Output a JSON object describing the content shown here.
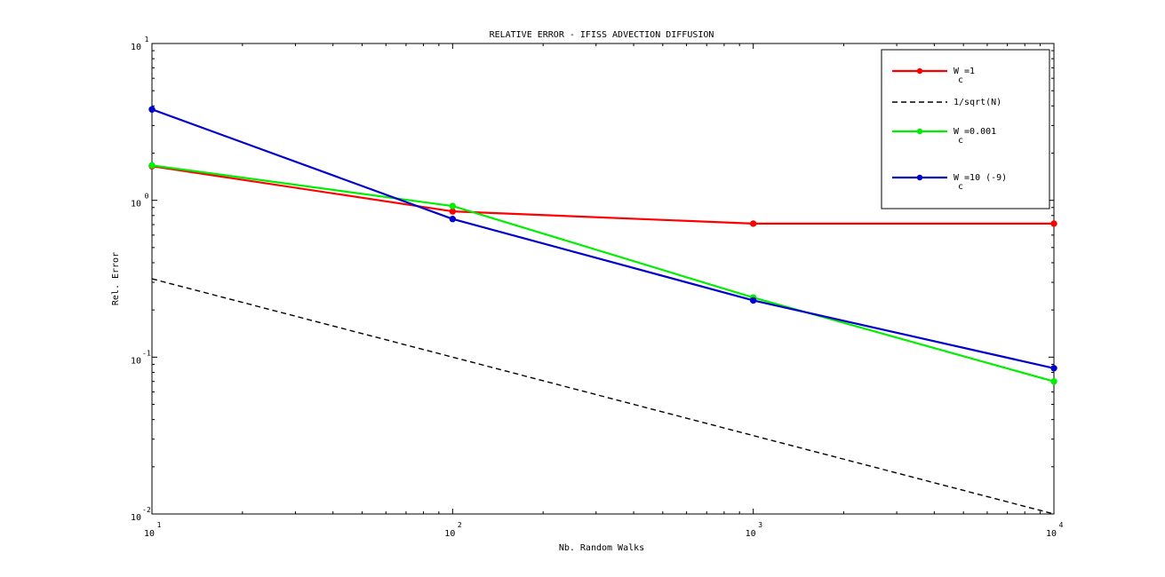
{
  "chart_data": {
    "type": "line",
    "title": "RELATIVE ERROR - IFISS ADVECTION DIFFUSION",
    "xlabel": "Nb. Random Walks",
    "ylabel": "Rel. Error",
    "xscale": "log",
    "yscale": "log",
    "xlim": [
      10,
      10000
    ],
    "ylim": [
      0.01,
      10
    ],
    "grid": false,
    "legend_position": "top-right",
    "x_ticks": [
      {
        "base": "10",
        "exp": "1"
      },
      {
        "base": "10",
        "exp": "2"
      },
      {
        "base": "10",
        "exp": "3"
      },
      {
        "base": "10",
        "exp": "4"
      }
    ],
    "y_ticks": [
      {
        "base": "10",
        "exp": "-2"
      },
      {
        "base": "10",
        "exp": "-1"
      },
      {
        "base": "10",
        "exp": "0"
      },
      {
        "base": "10",
        "exp": "1"
      }
    ],
    "x": [
      10,
      100,
      1000,
      10000
    ],
    "series": [
      {
        "legend": {
          "main": "W =1",
          "sub": "c"
        },
        "color": "#ff0000",
        "dash": false,
        "markers": true,
        "values": [
          1.65,
          0.85,
          0.71,
          0.71
        ]
      },
      {
        "legend": {
          "main": "1/sqrt(N)",
          "sub": ""
        },
        "color": "#000000",
        "dash": true,
        "markers": false,
        "values": [
          0.316,
          0.1,
          0.0316,
          0.01
        ]
      },
      {
        "legend": {
          "main": "W =0.001",
          "sub": "c"
        },
        "color": "#00ee00",
        "dash": false,
        "markers": true,
        "values": [
          1.67,
          0.92,
          0.24,
          0.07
        ]
      },
      {
        "legend": {
          "main": "W =10 (-9)",
          "sub": "c"
        },
        "color": "#0000cc",
        "dash": false,
        "markers": true,
        "values": [
          3.8,
          0.76,
          0.23,
          0.085
        ]
      }
    ]
  }
}
